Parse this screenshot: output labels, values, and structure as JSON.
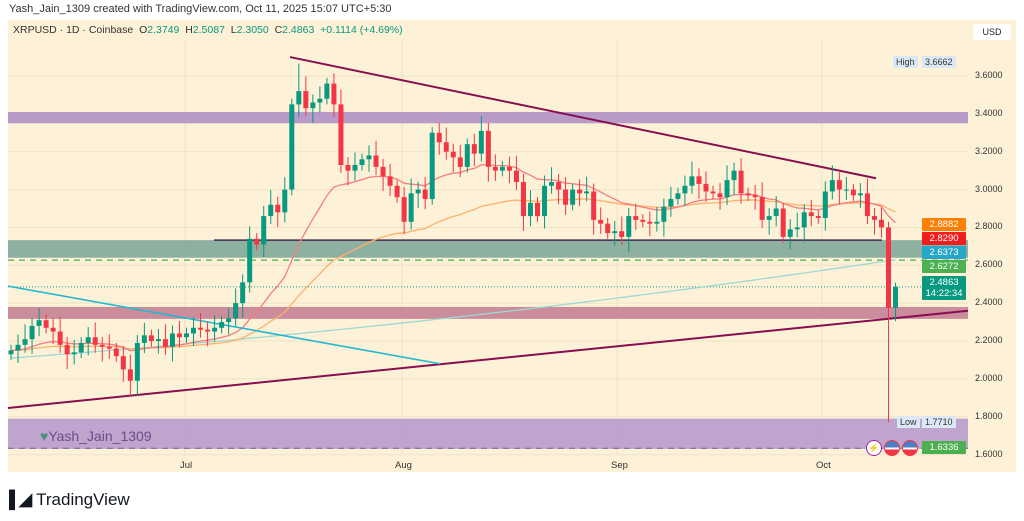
{
  "credit": "Yash_Jain_1309 created with TradingView.com, Oct 11, 2025 15:07 UTC+5:30",
  "legend": {
    "symbol": "XRPUSD · 1D · Coinbase",
    "o_label": "O",
    "o": "2.3749",
    "h_label": "H",
    "h": "2.5087",
    "l_label": "L",
    "l": "2.3050",
    "c_label": "C",
    "c": "2.4863",
    "change": "+0.1114 (+4.69%)"
  },
  "currency": "USD",
  "watermark": "Yash_Jain_1309",
  "brand": "TradingView",
  "chart_data": {
    "type": "candlestick",
    "symbol": "XRPUSD",
    "interval": "1D",
    "exchange": "Coinbase",
    "x_ticks": [
      "Jul",
      "Aug",
      "Sep",
      "Oct"
    ],
    "y_ticks": [
      "3.6000",
      "3.4000",
      "3.2000",
      "3.0000",
      "2.8000",
      "2.6000",
      "2.4000",
      "2.2000",
      "2.0000",
      "1.8000",
      "1.6000"
    ],
    "ylim": [
      1.56,
      3.75
    ],
    "close": [
      2.15,
      2.18,
      2.21,
      2.28,
      2.31,
      2.27,
      2.25,
      2.18,
      2.13,
      2.14,
      2.19,
      2.22,
      2.18,
      2.17,
      2.16,
      2.12,
      2.05,
      1.99,
      2.19,
      2.23,
      2.2,
      2.21,
      2.17,
      2.24,
      2.22,
      2.24,
      2.27,
      2.26,
      2.25,
      2.27,
      2.3,
      2.32,
      2.4,
      2.51,
      2.74,
      2.71,
      2.86,
      2.92,
      2.88,
      3.0,
      3.45,
      3.52,
      3.43,
      3.46,
      3.48,
      3.56,
      3.45,
      3.13,
      3.1,
      3.13,
      3.16,
      3.18,
      3.12,
      3.07,
      3.02,
      2.96,
      2.83,
      2.98,
      3.0,
      2.95,
      3.3,
      3.25,
      3.2,
      3.17,
      3.12,
      3.24,
      3.19,
      3.31,
      3.12,
      3.1,
      3.12,
      3.1,
      3.04,
      2.86,
      2.93,
      2.86,
      3.02,
      3.04,
      3.0,
      2.92,
      3.0,
      2.98,
      2.99,
      2.84,
      2.82,
      2.77,
      2.78,
      2.75,
      2.86,
      2.84,
      2.83,
      2.82,
      2.83,
      2.91,
      2.95,
      2.98,
      3.02,
      3.07,
      3.03,
      2.99,
      2.98,
      2.96,
      3.05,
      3.1,
      2.98,
      2.97,
      2.96,
      2.84,
      2.86,
      2.9,
      2.75,
      2.79,
      2.8,
      2.88,
      2.86,
      2.85,
      2.99,
      3.05,
      3.0,
      3.0,
      2.97,
      2.98,
      2.86,
      2.84,
      2.8,
      2.3749,
      2.4863
    ],
    "last_candle": {
      "open": 2.3749,
      "high": 2.5087,
      "low": 2.305,
      "close": 2.4863
    },
    "visible_high": 3.6662,
    "visible_low": 1.771,
    "price_labels": [
      {
        "text": "2.8882",
        "value": 2.8882,
        "color": "#ff7f00"
      },
      {
        "text": "2.8290",
        "value": 2.829,
        "color": "#f21d1d"
      },
      {
        "text": "2.6373",
        "value": 2.6373,
        "color": "#26a6c9"
      },
      {
        "text": "2.6272",
        "value": 2.6272,
        "color": "#4caf50"
      },
      {
        "text": "1.6336",
        "value": 1.6336,
        "color": "#4caf50"
      }
    ],
    "current_price": {
      "text": "2.4863",
      "countdown": "14:22:34",
      "color": "#089981"
    },
    "high_label": "High",
    "high_text": "3.6662",
    "low_label": "Low",
    "low_text": "1.7710",
    "zones": [
      {
        "top": 3.41,
        "bottom": 3.35,
        "color": "#ab8cc7"
      },
      {
        "top": 2.733,
        "bottom": 2.64,
        "color": "#7aa598"
      },
      {
        "top": 2.38,
        "bottom": 2.317,
        "color": "#c27a90"
      },
      {
        "top": 1.79,
        "bottom": 1.63,
        "color": "#b497cc"
      }
    ],
    "level_line": 2.733,
    "dashed_level": 2.6272,
    "colors": {
      "up": "#089981",
      "down": "#f23645",
      "ema_fast": "#f77c80",
      "ema_slow": "#ffb06a",
      "ma_long": "#9ed9d3",
      "trend": "#880e4f",
      "cyan_trend": "#22b8cf"
    },
    "ma_long": {
      "start": 2.11,
      "end": 2.63
    }
  }
}
